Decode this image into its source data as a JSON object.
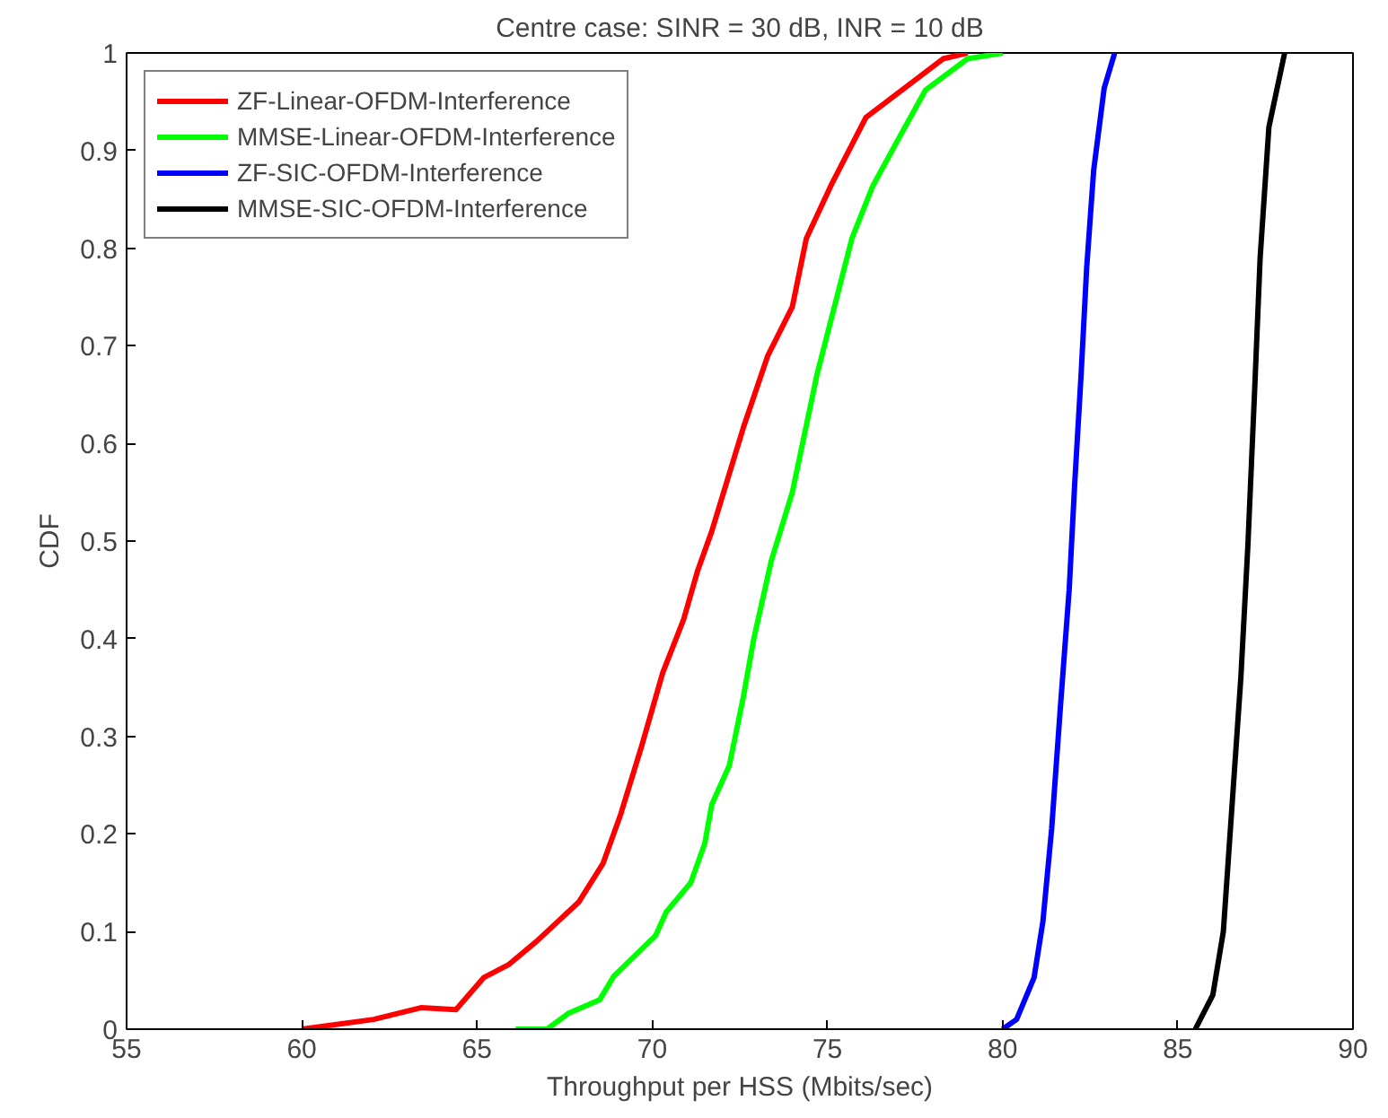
{
  "chart_data": {
    "type": "line",
    "title": "Centre case: SINR = 30 dB, INR = 10 dB",
    "xlabel": "Throughput per HSS (Mbits/sec)",
    "ylabel": "CDF",
    "xlim": [
      55,
      90
    ],
    "ylim": [
      0,
      1
    ],
    "xticks": [
      55,
      60,
      65,
      70,
      75,
      80,
      85,
      90
    ],
    "yticks": [
      0,
      0.1,
      0.2,
      0.3,
      0.4,
      0.5,
      0.6,
      0.7,
      0.8,
      0.9,
      1
    ],
    "grid": false,
    "legend": "top left",
    "line_style": "solid",
    "marker": "none",
    "series": [
      {
        "name": "ZF-Linear-OFDM-Interference",
        "color": "#ff0000",
        "x": [
          60,
          62.05,
          63.4,
          64.4,
          65.2,
          65.9,
          66.7,
          67.9,
          68.6,
          69.1,
          69.7,
          70.3,
          70.9,
          71.3,
          71.7,
          72.6,
          73.3,
          74.0,
          74.4,
          75.1,
          76.1,
          77.5,
          78.3,
          79.0
        ],
        "values": [
          0,
          0.01,
          0.022,
          0.02,
          0.053,
          0.066,
          0.09,
          0.13,
          0.17,
          0.22,
          0.29,
          0.365,
          0.42,
          0.47,
          0.51,
          0.616,
          0.69,
          0.74,
          0.81,
          0.864,
          0.934,
          0.972,
          0.994,
          1
        ]
      },
      {
        "name": "MMSE-Linear-OFDM-Interference",
        "color": "#00ff00",
        "x": [
          66.1,
          67.0,
          67.6,
          68.5,
          68.9,
          69.5,
          70.1,
          70.4,
          71.1,
          71.5,
          71.7,
          72.2,
          72.6,
          72.9,
          73.4,
          74.0,
          74.7,
          75.7,
          76.3,
          77.0,
          77.8,
          79.0,
          80.0
        ],
        "values": [
          0,
          0,
          0.016,
          0.03,
          0.054,
          0.075,
          0.096,
          0.12,
          0.15,
          0.19,
          0.23,
          0.27,
          0.34,
          0.4,
          0.48,
          0.55,
          0.67,
          0.81,
          0.864,
          0.91,
          0.962,
          0.994,
          1
        ]
      },
      {
        "name": "ZF-SIC-OFDM-Interference",
        "color": "#0000ff",
        "x": [
          80.0,
          80.4,
          80.9,
          81.15,
          81.4,
          81.65,
          81.9,
          82.06,
          82.24,
          82.4,
          82.6,
          82.9,
          83.2
        ],
        "values": [
          0,
          0.01,
          0.053,
          0.11,
          0.205,
          0.33,
          0.45,
          0.56,
          0.67,
          0.78,
          0.88,
          0.964,
          1
        ]
      },
      {
        "name": "MMSE-SIC-OFDM-Interference",
        "color": "#000000",
        "x": [
          85.5,
          86.0,
          86.3,
          86.55,
          86.8,
          87.0,
          87.2,
          87.35,
          87.6,
          88.05
        ],
        "values": [
          0,
          0.035,
          0.1,
          0.23,
          0.36,
          0.495,
          0.66,
          0.79,
          0.924,
          1
        ]
      }
    ]
  }
}
